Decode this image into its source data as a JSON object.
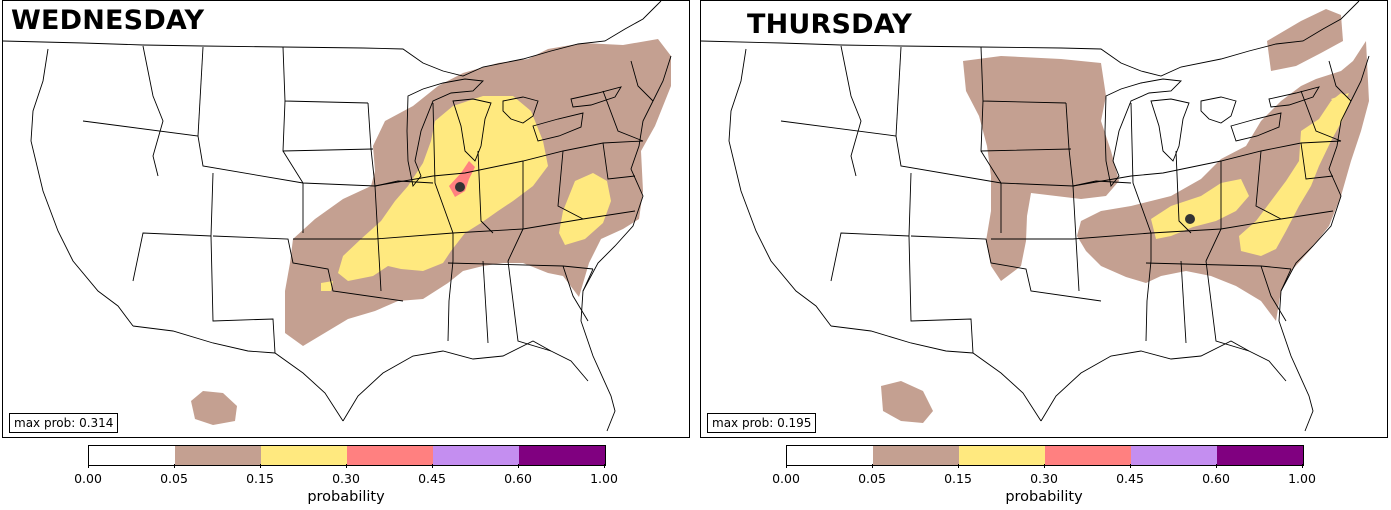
{
  "panels": [
    {
      "title": "WEDNESDAY",
      "max_prob": "max prob: 0.314"
    },
    {
      "title": "THURSDAY",
      "max_prob": "max prob: 0.195"
    }
  ],
  "colorbar": {
    "label": "probability",
    "ticks": [
      "0.00",
      "0.05",
      "0.15",
      "0.30",
      "0.45",
      "0.60",
      "1.00"
    ],
    "colors": [
      "#ffffff",
      "#c4a091",
      "#ffe97f",
      "#ff8080",
      "#c48ef0",
      "#800080"
    ]
  },
  "colors": {
    "tan": "#c4a091",
    "yellow": "#ffe97f",
    "red": "#ff8080",
    "marker": "#333333"
  }
}
